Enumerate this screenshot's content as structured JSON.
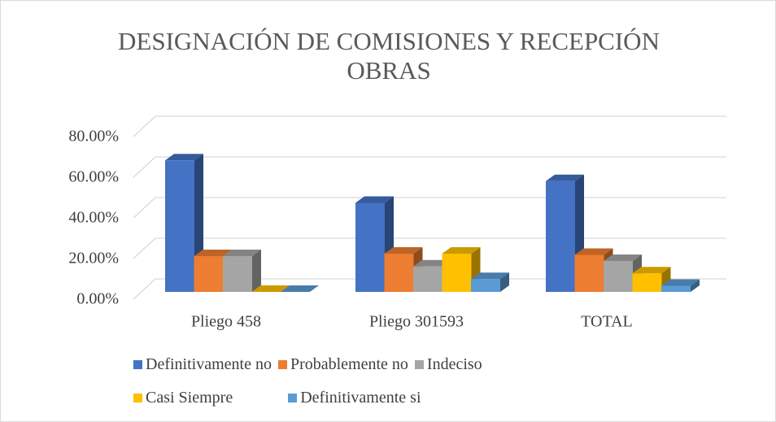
{
  "chart_data": {
    "type": "bar3d",
    "title": "DESIGNACIÓN DE COMISIONES Y RECEPCIÓN OBRAS",
    "categories": [
      "Pliego 458",
      "Pliego 301593",
      "TOTAL"
    ],
    "series": [
      {
        "name": "Definitivamente no",
        "color": "#4472c4",
        "values": [
          64.7,
          43.8,
          54.5
        ]
      },
      {
        "name": "Probablemente no",
        "color": "#ed7d31",
        "values": [
          17.6,
          18.8,
          18.2
        ]
      },
      {
        "name": "Indeciso",
        "color": "#a5a5a5",
        "values": [
          17.6,
          12.5,
          15.2
        ]
      },
      {
        "name": "Casi Siempre",
        "color": "#ffc000",
        "values": [
          0,
          18.8,
          9.1
        ]
      },
      {
        "name": "Definitivamente si",
        "color": "#5b9bd5",
        "values": [
          0,
          6.3,
          3.0
        ]
      }
    ],
    "ylim": [
      0,
      80
    ],
    "yticks": [
      {
        "value": 0,
        "label": "0.00%"
      },
      {
        "value": 20,
        "label": "20.00%"
      },
      {
        "value": 40,
        "label": "40.00%"
      },
      {
        "value": 60,
        "label": "60.00%"
      },
      {
        "value": 80,
        "label": "80.00%"
      }
    ],
    "grid": true
  }
}
